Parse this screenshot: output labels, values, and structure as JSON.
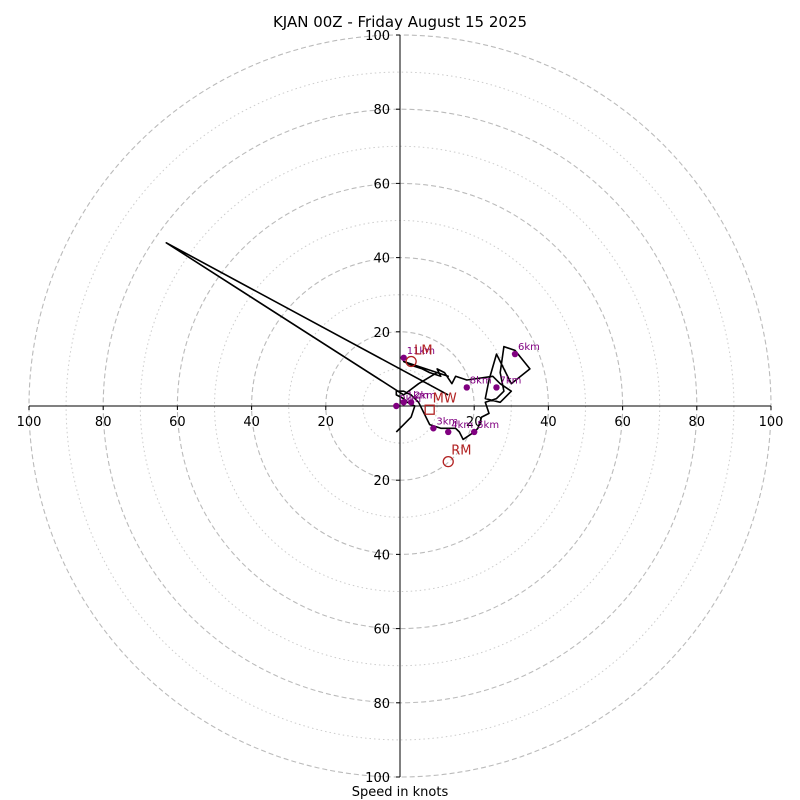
{
  "colors": {
    "hodo_line": "#000000",
    "height_marker": "#800080",
    "storm_motion": "#b22222",
    "ring_major": "#bbbbbb",
    "ring_minor": "#cccccc",
    "axis": "#000000"
  },
  "chart_data": {
    "type": "line",
    "title": "KJAN 00Z - Friday August 15 2025",
    "xlabel": "Speed in knots",
    "ylabel": "",
    "xlim": [
      -100,
      100
    ],
    "ylim": [
      -100,
      100
    ],
    "grid": true,
    "major_rings": [
      20,
      40,
      60,
      80,
      100
    ],
    "minor_rings": [
      10,
      30,
      50,
      70,
      90
    ],
    "x_tick_labels": [
      "100",
      "80",
      "60",
      "40",
      "20",
      "20",
      "40",
      "60",
      "80",
      "100"
    ],
    "x_tick_values": [
      -100,
      -80,
      -60,
      -40,
      -20,
      20,
      40,
      60,
      80,
      100
    ],
    "y_tick_labels": [
      "100",
      "80",
      "60",
      "40",
      "20",
      "20",
      "40",
      "60",
      "80",
      "100"
    ],
    "y_tick_values": [
      100,
      80,
      60,
      40,
      20,
      -20,
      -40,
      -60,
      -80,
      -100
    ],
    "hodograph": {
      "u": [
        -1,
        1,
        3,
        4,
        2,
        1,
        -1,
        -1,
        1,
        3,
        5,
        8,
        11,
        13,
        15,
        16,
        17,
        20,
        21,
        22,
        24,
        23,
        26,
        28,
        27,
        28,
        31,
        35,
        30,
        28,
        26,
        24,
        23,
        27,
        30,
        27,
        25,
        18,
        15,
        14,
        12,
        10,
        11,
        8,
        6,
        3,
        1,
        13,
        10,
        5,
        1,
        -63,
        13
      ],
      "v": [
        -7,
        -5,
        -3,
        0,
        1,
        2,
        3,
        4,
        4,
        3,
        1,
        -5,
        -6,
        -6,
        -6,
        -7,
        -9,
        -7,
        -6,
        -3,
        -2,
        1,
        2,
        4,
        9,
        16,
        15,
        10,
        6,
        10,
        14,
        7,
        2,
        1,
        4,
        6,
        8,
        7,
        8,
        6,
        9,
        10,
        8,
        9,
        10,
        11,
        12,
        8,
        9,
        6,
        3,
        44,
        3
      ]
    },
    "height_markers": [
      {
        "label": "0km",
        "u": -1,
        "v": 0
      },
      {
        "label": "1km",
        "u": 1,
        "v": 1
      },
      {
        "label": "2km",
        "u": 3,
        "v": 1
      },
      {
        "label": "3km",
        "u": 9,
        "v": -6
      },
      {
        "label": "4km",
        "u": 13,
        "v": -7
      },
      {
        "label": "5km",
        "u": 20,
        "v": -7
      },
      {
        "label": "6km",
        "u": 31,
        "v": 14
      },
      {
        "label": "7km",
        "u": 26,
        "v": 5
      },
      {
        "label": "8km",
        "u": 18,
        "v": 5
      },
      {
        "label": "11km",
        "u": 1,
        "v": 13
      }
    ],
    "storm_motions": [
      {
        "label": "LM",
        "u": 3,
        "v": 12,
        "marker": "circle"
      },
      {
        "label": "MW",
        "u": 8,
        "v": -1,
        "marker": "square"
      },
      {
        "label": "RM",
        "u": 13,
        "v": -15,
        "marker": "circle"
      }
    ]
  }
}
